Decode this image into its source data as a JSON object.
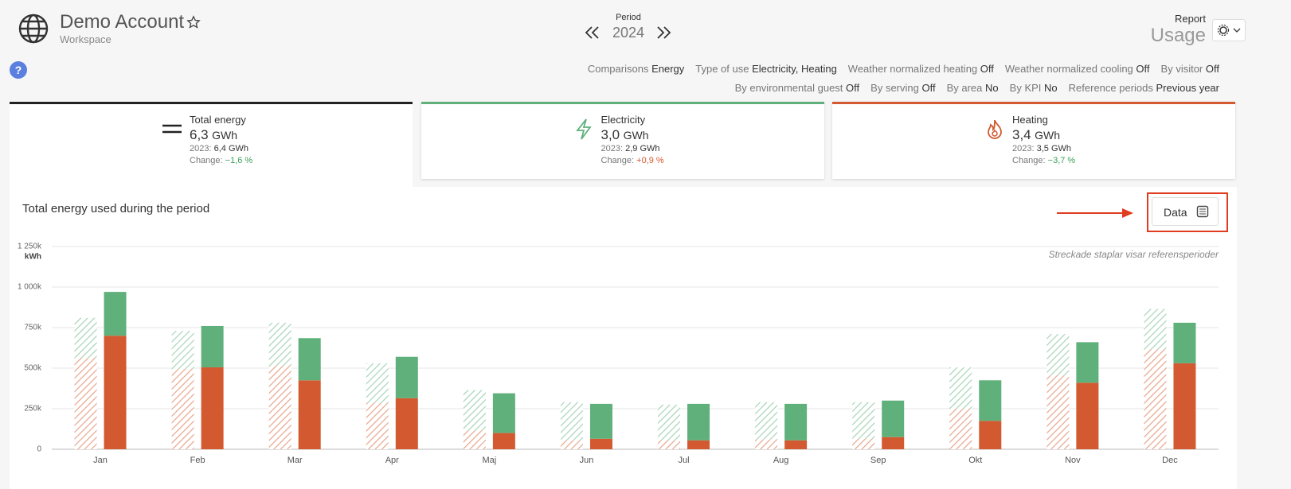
{
  "header": {
    "account": "Demo Account",
    "workspace": "Workspace",
    "period_label": "Period",
    "period": "2024",
    "report_label": "Report",
    "report": "Usage",
    "help": "?"
  },
  "filters": [
    [
      {
        "label": "Comparisons",
        "value": "Energy"
      },
      {
        "label": "Type of use",
        "value": "Electricity, Heating"
      },
      {
        "label": "Weather normalized heating",
        "value": "Off"
      },
      {
        "label": "Weather normalized cooling",
        "value": "Off"
      },
      {
        "label": "By visitor",
        "value": "Off"
      }
    ],
    [
      {
        "label": "By environmental guest",
        "value": "Off"
      },
      {
        "label": "By serving",
        "value": "Off"
      },
      {
        "label": "By area",
        "value": "No"
      },
      {
        "label": "By KPI",
        "value": "No"
      },
      {
        "label": "Reference periods",
        "value": "Previous year"
      }
    ]
  ],
  "cards": [
    {
      "name": "Total energy",
      "value": "6,3",
      "unit": "GWh",
      "ref_label": "2023:",
      "ref_value": "6,4 GWh",
      "change_label": "Change:",
      "change": "−1,6 %",
      "color": "#222222",
      "change_color": "#3aa05a",
      "active": true
    },
    {
      "name": "Electricity",
      "value": "3,0",
      "unit": "GWh",
      "ref_label": "2023:",
      "ref_value": "2,9 GWh",
      "change_label": "Change:",
      "change": "+0,9 %",
      "color": "#5fb07b",
      "change_color": "#d35a30",
      "active": false
    },
    {
      "name": "Heating",
      "value": "3,4",
      "unit": "GWh",
      "ref_label": "2023:",
      "ref_value": "3,5 GWh",
      "change_label": "Change:",
      "change": "−3,7 %",
      "color": "#d35a30",
      "change_color": "#3aa05a",
      "active": false
    }
  ],
  "chart_data": {
    "type": "stacked-bar",
    "title": "Total energy used during the period",
    "button": "Data",
    "note": "Streckade staplar visar referensperioder",
    "y_label": "kWh",
    "categories": [
      "Jan",
      "Feb",
      "Mar",
      "Apr",
      "Maj",
      "Jun",
      "Jul",
      "Aug",
      "Sep",
      "Okt",
      "Nov",
      "Dec"
    ],
    "series": [
      {
        "color": "#d35a30",
        "hatched": true,
        "stack": 0,
        "values": [
          565000,
          495000,
          515000,
          285000,
          115000,
          55000,
          55000,
          60000,
          65000,
          250000,
          455000,
          615000
        ]
      },
      {
        "color": "#5fb07b",
        "hatched": true,
        "stack": 0,
        "values": [
          245000,
          235000,
          265000,
          245000,
          250000,
          235000,
          220000,
          230000,
          225000,
          255000,
          255000,
          250000
        ]
      },
      {
        "color": "#d35a30",
        "hatched": false,
        "stack": 1,
        "values": [
          700000,
          505000,
          425000,
          315000,
          100000,
          65000,
          55000,
          55000,
          75000,
          175000,
          410000,
          530000
        ]
      },
      {
        "color": "#5fb07b",
        "hatched": false,
        "stack": 1,
        "values": [
          270000,
          255000,
          260000,
          255000,
          245000,
          215000,
          225000,
          225000,
          225000,
          250000,
          250000,
          250000
        ]
      }
    ],
    "ylim": [
      0,
      1250000
    ],
    "yticks": [
      0,
      {
        "value": 250000,
        "label": "250k"
      },
      {
        "value": 500000,
        "label": "500k"
      },
      {
        "value": 750000,
        "label": "750k"
      },
      {
        "value": 1000000,
        "label": "1 000k"
      },
      {
        "value": 1250000,
        "label": "1 250k"
      }
    ],
    "grid": true
  }
}
